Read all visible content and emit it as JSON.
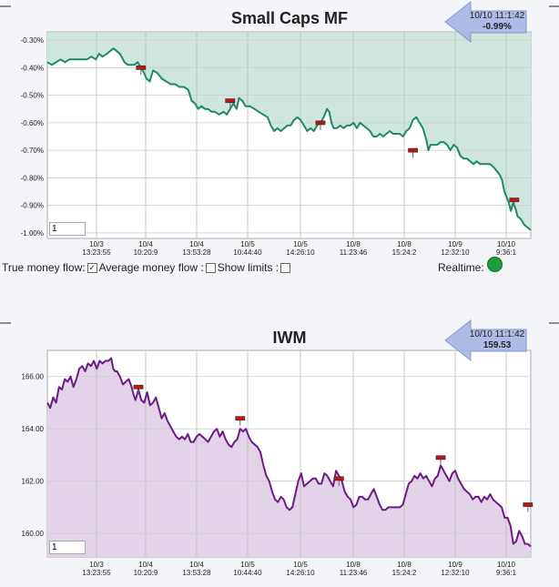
{
  "colors": {
    "mf_line": "#1e8a63",
    "mf_fill": "#cfe6df",
    "iwm_line": "#6e1a85",
    "iwm_fill": "#e3d3e8",
    "arrow": "#a8b4e6"
  },
  "chart_data": [
    {
      "type": "area",
      "title": "Small Caps MF",
      "badge": {
        "time": "10/10 11:1:42",
        "value": "-0.99%"
      },
      "ylim": [
        -1.02,
        -0.27
      ],
      "yticks": [
        -0.3,
        -0.4,
        -0.5,
        -0.6,
        -0.7,
        -0.8,
        -0.9,
        -1.0
      ],
      "ytick_labels": [
        "-0.30%",
        "-0.40%",
        "-0.50%",
        "-0.60%",
        "-0.70%",
        "-0.80%",
        "-0.90%",
        "-1.00%"
      ],
      "xticks": [
        {
          "d": "10/3",
          "t": "13:23:55"
        },
        {
          "d": "10/4",
          "t": "10:20:9"
        },
        {
          "d": "10/4",
          "t": "13:53:28"
        },
        {
          "d": "10/5",
          "t": "10:44:40"
        },
        {
          "d": "10/5",
          "t": "14:26:10"
        },
        {
          "d": "10/8",
          "t": "11:23:46"
        },
        {
          "d": "10/8",
          "t": "15:24:2"
        },
        {
          "d": "10/9",
          "t": "12:32:10"
        },
        {
          "d": "10/10",
          "t": "9:36:1"
        }
      ],
      "input_value": "1",
      "series": [
        [
          0,
          -0.38
        ],
        [
          4,
          -0.39
        ],
        [
          8,
          -0.38
        ],
        [
          12,
          -0.37
        ],
        [
          16,
          -0.38
        ],
        [
          20,
          -0.37
        ],
        [
          24,
          -0.37
        ],
        [
          28,
          -0.37
        ],
        [
          32,
          -0.37
        ],
        [
          36,
          -0.37
        ],
        [
          40,
          -0.36
        ],
        [
          44,
          -0.37
        ],
        [
          47,
          -0.35
        ],
        [
          50,
          -0.36
        ],
        [
          54,
          -0.35
        ],
        [
          57,
          -0.34
        ],
        [
          60,
          -0.33
        ],
        [
          63,
          -0.34
        ],
        [
          66,
          -0.35
        ],
        [
          70,
          -0.38
        ],
        [
          73,
          -0.39
        ],
        [
          76,
          -0.39
        ],
        [
          79,
          -0.39
        ],
        [
          82,
          -0.38
        ],
        [
          85,
          -0.4
        ],
        [
          88,
          -0.42
        ],
        [
          90,
          -0.44
        ],
        [
          93,
          -0.45
        ],
        [
          96,
          -0.41
        ],
        [
          100,
          -0.42
        ],
        [
          104,
          -0.44
        ],
        [
          108,
          -0.45
        ],
        [
          112,
          -0.46
        ],
        [
          116,
          -0.46
        ],
        [
          120,
          -0.47
        ],
        [
          124,
          -0.47
        ],
        [
          128,
          -0.48
        ],
        [
          131,
          -0.52
        ],
        [
          134,
          -0.53
        ],
        [
          137,
          -0.55
        ],
        [
          140,
          -0.54
        ],
        [
          143,
          -0.55
        ],
        [
          146,
          -0.55
        ],
        [
          149,
          -0.56
        ],
        [
          152,
          -0.56
        ],
        [
          156,
          -0.57
        ],
        [
          160,
          -0.56
        ],
        [
          163,
          -0.57
        ],
        [
          166,
          -0.55
        ],
        [
          169,
          -0.53
        ],
        [
          172,
          -0.55
        ],
        [
          174,
          -0.51
        ],
        [
          177,
          -0.52
        ],
        [
          180,
          -0.54
        ],
        [
          184,
          -0.54
        ],
        [
          188,
          -0.55
        ],
        [
          192,
          -0.56
        ],
        [
          196,
          -0.57
        ],
        [
          200,
          -0.58
        ],
        [
          203,
          -0.61
        ],
        [
          206,
          -0.63
        ],
        [
          209,
          -0.62
        ],
        [
          212,
          -0.63
        ],
        [
          215,
          -0.62
        ],
        [
          218,
          -0.61
        ],
        [
          221,
          -0.61
        ],
        [
          224,
          -0.59
        ],
        [
          227,
          -0.58
        ],
        [
          230,
          -0.59
        ],
        [
          233,
          -0.61
        ],
        [
          236,
          -0.63
        ],
        [
          239,
          -0.62
        ],
        [
          242,
          -0.63
        ],
        [
          245,
          -0.61
        ],
        [
          248,
          -0.6
        ],
        [
          251,
          -0.58
        ],
        [
          254,
          -0.55
        ],
        [
          256,
          -0.56
        ],
        [
          258,
          -0.6
        ],
        [
          260,
          -0.62
        ],
        [
          263,
          -0.62
        ],
        [
          266,
          -0.61
        ],
        [
          269,
          -0.62
        ],
        [
          272,
          -0.61
        ],
        [
          275,
          -0.61
        ],
        [
          278,
          -0.6
        ],
        [
          281,
          -0.62
        ],
        [
          284,
          -0.6
        ],
        [
          287,
          -0.61
        ],
        [
          290,
          -0.62
        ],
        [
          293,
          -0.63
        ],
        [
          296,
          -0.65
        ],
        [
          299,
          -0.65
        ],
        [
          302,
          -0.64
        ],
        [
          305,
          -0.65
        ],
        [
          308,
          -0.64
        ],
        [
          311,
          -0.63
        ],
        [
          314,
          -0.64
        ],
        [
          317,
          -0.64
        ],
        [
          320,
          -0.64
        ],
        [
          323,
          -0.65
        ],
        [
          326,
          -0.63
        ],
        [
          329,
          -0.62
        ],
        [
          332,
          -0.59
        ],
        [
          335,
          -0.58
        ],
        [
          338,
          -0.6
        ],
        [
          341,
          -0.62
        ],
        [
          344,
          -0.66
        ],
        [
          346,
          -0.7
        ],
        [
          348,
          -0.68
        ],
        [
          351,
          -0.68
        ],
        [
          354,
          -0.68
        ],
        [
          357,
          -0.67
        ],
        [
          360,
          -0.67
        ],
        [
          363,
          -0.68
        ],
        [
          366,
          -0.7
        ],
        [
          369,
          -0.68
        ],
        [
          372,
          -0.69
        ],
        [
          375,
          -0.72
        ],
        [
          378,
          -0.73
        ],
        [
          381,
          -0.73
        ],
        [
          384,
          -0.74
        ],
        [
          387,
          -0.75
        ],
        [
          390,
          -0.74
        ],
        [
          393,
          -0.75
        ],
        [
          396,
          -0.75
        ],
        [
          399,
          -0.75
        ],
        [
          402,
          -0.75
        ],
        [
          405,
          -0.76
        ],
        [
          407,
          -0.77
        ],
        [
          409,
          -0.78
        ],
        [
          411,
          -0.79
        ],
        [
          413,
          -0.81
        ],
        [
          415,
          -0.85
        ],
        [
          417,
          -0.87
        ],
        [
          419,
          -0.89
        ],
        [
          421,
          -0.92
        ],
        [
          423,
          -0.89
        ],
        [
          425,
          -0.91
        ],
        [
          427,
          -0.94
        ],
        [
          430,
          -0.95
        ],
        [
          433,
          -0.97
        ],
        [
          436,
          -0.98
        ],
        [
          439,
          -0.99
        ]
      ],
      "markers": [
        [
          85,
          -0.4
        ],
        [
          166,
          -0.52
        ],
        [
          248,
          -0.6
        ],
        [
          332,
          -0.7
        ],
        [
          424,
          -0.88
        ]
      ]
    },
    {
      "type": "area",
      "title": "IWM",
      "badge": {
        "time": "10/10 11:1:42",
        "value": "159.53"
      },
      "ylim": [
        159.1,
        167.0
      ],
      "yticks": [
        166.0,
        164.0,
        162.0,
        160.0
      ],
      "ytick_labels": [
        "166.00",
        "164.00",
        "162.00",
        "160.00"
      ],
      "xticks": [
        {
          "d": "10/3",
          "t": "13:23:55"
        },
        {
          "d": "10/4",
          "t": "10:20:9"
        },
        {
          "d": "10/4",
          "t": "13:53:28"
        },
        {
          "d": "10/5",
          "t": "10:44:40"
        },
        {
          "d": "10/5",
          "t": "14:26:10"
        },
        {
          "d": "10/8",
          "t": "11:23:46"
        },
        {
          "d": "10/8",
          "t": "15:24:2"
        },
        {
          "d": "10/9",
          "t": "12:32:10"
        },
        {
          "d": "10/10",
          "t": "9:36:1"
        }
      ],
      "input_value": "1",
      "series": [
        [
          0,
          165.0
        ],
        [
          3,
          164.8
        ],
        [
          6,
          165.2
        ],
        [
          9,
          165.0
        ],
        [
          12,
          165.6
        ],
        [
          15,
          165.5
        ],
        [
          18,
          165.9
        ],
        [
          21,
          165.8
        ],
        [
          24,
          166.0
        ],
        [
          27,
          165.6
        ],
        [
          30,
          165.9
        ],
        [
          33,
          166.3
        ],
        [
          36,
          166.4
        ],
        [
          39,
          166.2
        ],
        [
          42,
          166.5
        ],
        [
          45,
          166.4
        ],
        [
          48,
          166.6
        ],
        [
          51,
          166.3
        ],
        [
          54,
          166.6
        ],
        [
          57,
          166.5
        ],
        [
          60,
          166.6
        ],
        [
          63,
          166.6
        ],
        [
          66,
          166.7
        ],
        [
          68,
          166.3
        ],
        [
          70,
          166.2
        ],
        [
          72,
          166.2
        ],
        [
          75,
          166.0
        ],
        [
          78,
          165.7
        ],
        [
          81,
          165.8
        ],
        [
          84,
          165.9
        ],
        [
          87,
          165.6
        ],
        [
          89,
          165.3
        ],
        [
          91,
          165.1
        ],
        [
          94,
          165.5
        ],
        [
          97,
          165.1
        ],
        [
          100,
          165.0
        ],
        [
          103,
          165.4
        ],
        [
          106,
          164.9
        ],
        [
          109,
          165.0
        ],
        [
          112,
          165.2
        ],
        [
          115,
          164.8
        ],
        [
          118,
          164.4
        ],
        [
          121,
          164.6
        ],
        [
          124,
          164.3
        ],
        [
          127,
          164.1
        ],
        [
          130,
          163.9
        ],
        [
          133,
          163.7
        ],
        [
          136,
          163.6
        ],
        [
          139,
          163.7
        ],
        [
          142,
          163.6
        ],
        [
          145,
          163.8
        ],
        [
          148,
          163.5
        ],
        [
          151,
          163.5
        ],
        [
          154,
          163.7
        ],
        [
          157,
          163.8
        ],
        [
          160,
          163.7
        ],
        [
          163,
          163.6
        ],
        [
          166,
          163.5
        ],
        [
          169,
          163.7
        ],
        [
          172,
          163.9
        ],
        [
          175,
          164.0
        ],
        [
          178,
          163.7
        ],
        [
          181,
          163.9
        ],
        [
          184,
          163.6
        ],
        [
          187,
          163.4
        ],
        [
          190,
          163.3
        ],
        [
          193,
          163.5
        ],
        [
          196,
          163.6
        ],
        [
          199,
          164.0
        ],
        [
          202,
          163.9
        ],
        [
          205,
          164.0
        ],
        [
          208,
          163.7
        ],
        [
          211,
          163.5
        ],
        [
          214,
          163.4
        ],
        [
          217,
          163.3
        ],
        [
          220,
          163.1
        ],
        [
          223,
          162.6
        ],
        [
          226,
          162.2
        ],
        [
          229,
          162.0
        ],
        [
          232,
          161.6
        ],
        [
          235,
          161.3
        ],
        [
          238,
          161.2
        ],
        [
          241,
          161.4
        ],
        [
          244,
          161.3
        ],
        [
          247,
          161.0
        ],
        [
          250,
          160.9
        ],
        [
          253,
          161.0
        ],
        [
          256,
          161.5
        ],
        [
          259,
          162.0
        ],
        [
          262,
          162.3
        ],
        [
          265,
          161.8
        ],
        [
          268,
          161.9
        ],
        [
          271,
          162.0
        ],
        [
          274,
          162.1
        ],
        [
          277,
          162.1
        ],
        [
          280,
          161.9
        ],
        [
          283,
          161.9
        ],
        [
          286,
          162.3
        ],
        [
          289,
          162.2
        ],
        [
          292,
          162.0
        ],
        [
          295,
          161.8
        ],
        [
          298,
          162.4
        ],
        [
          301,
          162.2
        ],
        [
          304,
          162.0
        ],
        [
          307,
          161.6
        ],
        [
          310,
          161.4
        ],
        [
          313,
          161.3
        ],
        [
          316,
          161.0
        ],
        [
          319,
          161.1
        ],
        [
          322,
          161.4
        ],
        [
          325,
          161.4
        ],
        [
          328,
          161.3
        ],
        [
          331,
          161.3
        ],
        [
          334,
          161.5
        ],
        [
          337,
          161.7
        ],
        [
          340,
          161.4
        ],
        [
          343,
          161.1
        ],
        [
          346,
          160.9
        ],
        [
          349,
          160.9
        ],
        [
          352,
          161.0
        ],
        [
          355,
          161.0
        ],
        [
          358,
          161.0
        ],
        [
          361,
          161.0
        ],
        [
          364,
          161.0
        ],
        [
          367,
          161.1
        ],
        [
          370,
          161.5
        ],
        [
          373,
          161.9
        ],
        [
          376,
          162.0
        ],
        [
          379,
          162.2
        ],
        [
          382,
          162.1
        ],
        [
          385,
          162.3
        ],
        [
          388,
          162.1
        ],
        [
          391,
          162.2
        ],
        [
          394,
          162.0
        ],
        [
          397,
          161.8
        ],
        [
          400,
          162.1
        ],
        [
          403,
          162.2
        ],
        [
          406,
          162.6
        ],
        [
          409,
          162.4
        ],
        [
          412,
          162.2
        ],
        [
          415,
          162.0
        ],
        [
          418,
          162.3
        ],
        [
          421,
          162.4
        ],
        [
          424,
          162.1
        ],
        [
          427,
          161.9
        ],
        [
          430,
          161.7
        ],
        [
          433,
          161.6
        ],
        [
          436,
          161.5
        ],
        [
          439,
          161.3
        ],
        [
          442,
          161.4
        ],
        [
          445,
          161.4
        ],
        [
          448,
          161.2
        ],
        [
          451,
          161.4
        ],
        [
          454,
          161.3
        ],
        [
          457,
          161.5
        ],
        [
          460,
          161.3
        ],
        [
          463,
          161.2
        ],
        [
          466,
          161.1
        ],
        [
          469,
          161.0
        ],
        [
          472,
          160.6
        ],
        [
          475,
          160.6
        ],
        [
          478,
          160.3
        ],
        [
          481,
          159.6
        ],
        [
          484,
          159.7
        ],
        [
          487,
          160.1
        ],
        [
          490,
          159.9
        ],
        [
          493,
          159.6
        ],
        [
          496,
          159.6
        ],
        [
          499,
          159.5
        ]
      ],
      "markers": [
        [
          94,
          165.6
        ],
        [
          199,
          164.4
        ],
        [
          301,
          162.1
        ],
        [
          406,
          162.9
        ],
        [
          496,
          161.1
        ]
      ]
    }
  ]
}
